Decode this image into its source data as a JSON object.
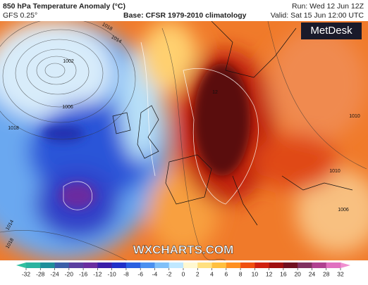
{
  "header": {
    "title": "850 hPa Temperature Anomaly (°C)",
    "model": "GFS 0.25°",
    "base": "Base: CFSR 1979-2010 climatology",
    "run": "Run: Wed 12 Jun 12Z",
    "valid": "Valid: Sat 15 Jun 12:00 UTC"
  },
  "logo": "MetDesk",
  "watermark": "WXCHARTS.COM",
  "isobar_labels": [
    "1002",
    "1006",
    "1018",
    "1018",
    "1014",
    "12",
    "1010",
    "1010",
    "1006",
    "1014",
    "1018"
  ],
  "colorbar": {
    "ticks": [
      -32,
      -28,
      -24,
      -20,
      -16,
      -12,
      -10,
      -8,
      -6,
      -4,
      -2,
      0,
      2,
      4,
      6,
      8,
      10,
      12,
      16,
      20,
      24,
      28,
      32
    ],
    "colors": [
      "#2bb3a0",
      "#1f8f9a",
      "#3a5fa8",
      "#5a3fa0",
      "#6a2ea0",
      "#3a1ea8",
      "#2030c8",
      "#2a60e0",
      "#4a90f0",
      "#80c0f8",
      "#c0e8ff",
      "#fff8d0",
      "#ffe080",
      "#ffc040",
      "#ff9020",
      "#f05010",
      "#d02010",
      "#a01010",
      "#701020",
      "#803060",
      "#b04090",
      "#e070c0"
    ],
    "low_color": "#30c0a0",
    "high_color": "#f090d0"
  }
}
